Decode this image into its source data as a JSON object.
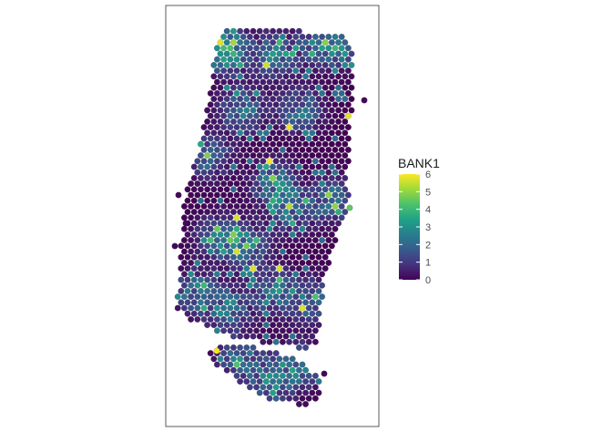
{
  "chart_data": {
    "type": "heatmap",
    "subtype": "spatial hexagonal spot map",
    "title": "",
    "xlabel": "",
    "ylabel": "",
    "grid": false,
    "legend": {
      "title": "BANK1",
      "position": "right",
      "ticks": [
        "0",
        "1",
        "2",
        "3",
        "4",
        "5",
        "6"
      ],
      "range": [
        0,
        6
      ],
      "colormap": "viridis"
    },
    "colors": {
      "panel_border": "#333333",
      "background": "#ffffff",
      "viridis_low": "#440154",
      "viridis_mid": "#21918c",
      "viridis_high": "#fde725"
    },
    "value_summary": {
      "min": 0,
      "max": 6,
      "typical": "mostly 0-2 with scattered hotspots of 3-6"
    }
  }
}
